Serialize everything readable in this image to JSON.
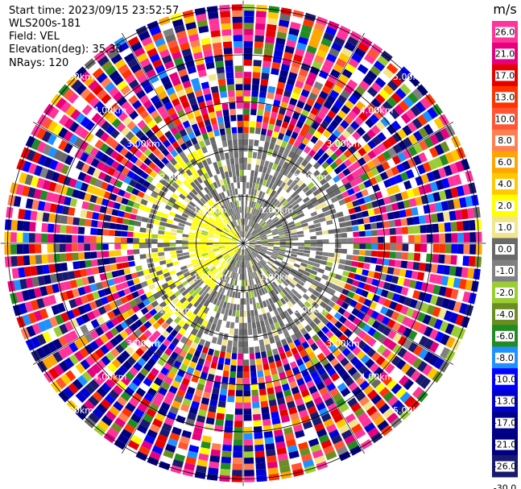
{
  "header": {
    "start_time": "Start time: 2023/09/15 23:52:57",
    "instrument": "WLS200s-181",
    "field": "Field: VEL",
    "elevation": "Elevation(deg): 35.30",
    "nrays": "NRays: 120"
  },
  "colorbar": {
    "unit": "m/s",
    "ticks": [
      "26.0",
      "21.0",
      "17.0",
      "13.0",
      "10.0",
      "8.0",
      "6.0",
      "4.0",
      "2.0",
      "1.0",
      "0.0",
      "-1.0",
      "-2.0",
      "-4.0",
      "-6.0",
      "-8.0",
      "-10.0",
      "-13.0",
      "-17.0",
      "-21.0",
      "-26.0",
      "-30.0"
    ],
    "colors": [
      "#ff3399",
      "#e6007e",
      "#e60000",
      "#ff3300",
      "#ff5533",
      "#ff7f50",
      "#ffa500",
      "#ffc800",
      "#ffff00",
      "#f2e68c",
      "#696969",
      "#808080",
      "#9acd32",
      "#6b8e23",
      "#228b22",
      "#1e90ff",
      "#0000ff",
      "#0000cd",
      "#00008b",
      "#000080",
      "#191970"
    ]
  },
  "chart_data": {
    "type": "heatmap",
    "projection": "polar-ppi",
    "field": "VEL",
    "units": "m/s",
    "elevation_deg": 35.3,
    "n_rays": 120,
    "range_rings_km": [
      1.0,
      2.0,
      3.0,
      4.0,
      5.0
    ],
    "ring_labels": [
      "1.00km",
      "2.00km",
      "3.00km",
      "4.00km",
      "5.00km"
    ],
    "clim": [
      -30.0,
      26.0
    ],
    "dominant_values_by_range": [
      {
        "range_km": [
          0.0,
          1.0
        ],
        "typical_ms": [
          -2.0,
          1.5
        ]
      },
      {
        "range_km": [
          1.0,
          2.3
        ],
        "typical_ms": [
          -2.0,
          1.0
        ]
      },
      {
        "range_km": [
          2.3,
          5.8
        ],
        "typical_ms": "noise (full scale)"
      }
    ]
  }
}
